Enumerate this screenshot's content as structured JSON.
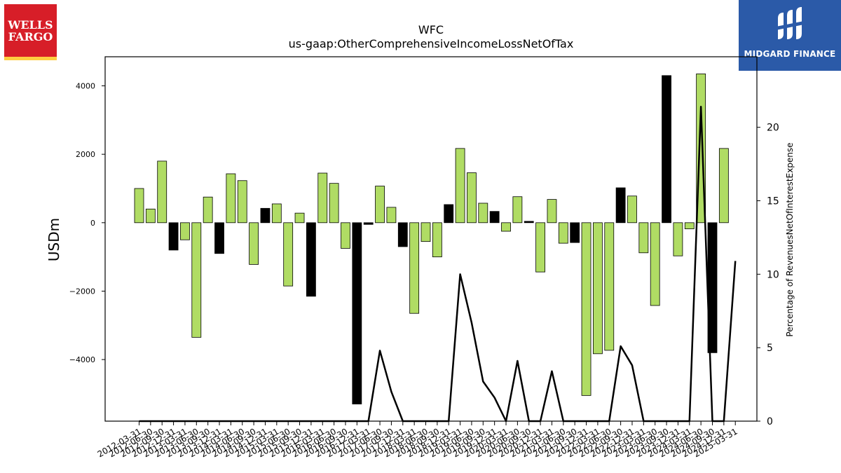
{
  "logos": {
    "left_lines": [
      "WELLS",
      "FARGO"
    ],
    "right_name": "MIDGARD FINANCE"
  },
  "chart_data": {
    "type": "bar",
    "title": "WFC",
    "subtitle": "us-gaap:OtherComprehensiveIncomeLossNetOfTax",
    "ylabel": "USDm",
    "y2label": "Percentage of RevenuesNetOfInterestExpense",
    "ylim": [
      -5800,
      4850
    ],
    "y2lim": [
      0,
      24.8
    ],
    "yticks": [
      -4000,
      -2000,
      0,
      2000,
      4000
    ],
    "ytick_labels": [
      "−4000",
      "−2000",
      "0",
      "2000",
      "4000"
    ],
    "y2ticks": [
      0,
      5,
      10,
      15,
      20
    ],
    "grid": false,
    "colors": {
      "positive_ratio_bar": "#b0dc64",
      "negative_ratio_bar": "#000000",
      "line": "#000000"
    },
    "categories": [
      "2012-03-31",
      "2012-06-30",
      "2012-09-30",
      "2012-12-31",
      "2013-03-31",
      "2013-06-30",
      "2013-09-30",
      "2013-12-31",
      "2014-03-31",
      "2014-06-30",
      "2014-09-30",
      "2014-12-31",
      "2015-03-31",
      "2015-06-30",
      "2015-09-30",
      "2015-12-31",
      "2016-03-31",
      "2016-06-30",
      "2016-09-30",
      "2016-12-31",
      "2017-03-31",
      "2017-06-30",
      "2017-09-30",
      "2017-12-31",
      "2018-03-31",
      "2018-06-30",
      "2018-09-30",
      "2018-12-31",
      "2019-03-31",
      "2019-06-30",
      "2019-09-30",
      "2019-12-31",
      "2020-03-31",
      "2020-06-30",
      "2020-09-30",
      "2020-12-31",
      "2021-03-31",
      "2021-06-30",
      "2021-09-30",
      "2021-12-31",
      "2022-03-31",
      "2022-06-30",
      "2022-09-30",
      "2022-12-31",
      "2023-03-31",
      "2023-06-30",
      "2023-09-30",
      "2023-12-31",
      "2024-03-31",
      "2024-06-30",
      "2024-09-30",
      "2024-12-31",
      "2025-03-31"
    ],
    "series": [
      {
        "type": "bar",
        "values": [
          1000,
          400,
          1800,
          -800,
          -500,
          -3350,
          750,
          -900,
          1430,
          1230,
          -1220,
          420,
          550,
          -1850,
          280,
          -2150,
          1450,
          1150,
          -750,
          -5300,
          -50,
          1070,
          450,
          -700,
          -2650,
          -550,
          -1000,
          530,
          2170,
          1460,
          570,
          330,
          -250,
          760,
          40,
          -1440,
          680,
          -600,
          -580,
          -5050,
          -3830,
          -3730,
          1020,
          780,
          -880,
          -2420,
          4300,
          -970,
          -180,
          4350,
          -3800,
          2170,
          0
        ],
        "bar_color": [
          "green",
          "green",
          "green",
          "black",
          "green",
          "green",
          "green",
          "black",
          "green",
          "green",
          "green",
          "black",
          "green",
          "green",
          "green",
          "black",
          "green",
          "green",
          "green",
          "black",
          "black",
          "green",
          "green",
          "black",
          "green",
          "green",
          "green",
          "black",
          "green",
          "green",
          "green",
          "black",
          "green",
          "green",
          "black",
          "green",
          "green",
          "green",
          "black",
          "green",
          "green",
          "green",
          "black",
          "green",
          "green",
          "green",
          "black",
          "green",
          "green",
          "green",
          "black",
          "green",
          "green"
        ]
      },
      {
        "type": "line",
        "values": [
          0,
          0,
          0,
          0,
          0,
          0,
          0,
          0,
          0,
          0,
          0,
          0,
          0,
          0,
          0,
          0,
          0,
          0,
          0,
          0,
          0,
          4.8,
          2.0,
          0,
          0,
          0,
          0,
          0,
          10.0,
          6.7,
          2.7,
          1.6,
          0,
          4.1,
          0,
          0,
          3.4,
          0,
          0,
          0,
          0,
          0,
          5.1,
          3.8,
          0,
          0,
          0,
          0,
          0,
          21.4,
          0,
          0,
          10.9
        ]
      }
    ]
  }
}
